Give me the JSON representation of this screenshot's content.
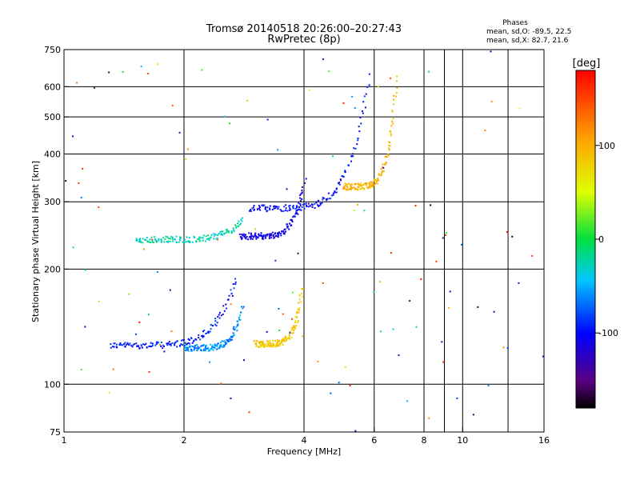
{
  "chart_data": {
    "type": "scatter",
    "title": "Tromsø 20140518 20:26:00–20:27:43",
    "subtitle": "RwPretec (8p)",
    "xlabel": "Frequency [MHz]",
    "ylabel": "Stationary phase Virtual Height [km]",
    "x_scale": "log",
    "y_scale": "log",
    "xlim": [
      1,
      16
    ],
    "ylim": [
      75,
      750
    ],
    "x_ticks": [
      "1",
      "2",
      "4",
      "6",
      "8",
      "10",
      "16"
    ],
    "x_tick_values": [
      1,
      2,
      4,
      6,
      8,
      10,
      16
    ],
    "x_minor_gridlines": [
      9,
      13
    ],
    "y_ticks": [
      "750",
      "600",
      "500",
      "400",
      "300",
      "200",
      "100",
      "75"
    ],
    "y_tick_values": [
      750,
      600,
      500,
      400,
      300,
      200,
      100,
      75
    ],
    "grid": true,
    "legend": {
      "title": "Phases",
      "lines": [
        "mean, sd,O: -89.5, 22.5",
        "mean, sd,X: 82.7, 21.6"
      ],
      "placement": "top-right"
    },
    "colorbar": {
      "label": "[deg]",
      "range": [
        -180,
        180
      ],
      "ticks": [
        "100",
        "0",
        "-100"
      ],
      "tick_values": [
        100,
        0,
        -100
      ],
      "colormap": "rainbow"
    },
    "traces": [
      {
        "id": "E-layer",
        "phase": -95,
        "x_range": [
          1.3,
          2.7
        ],
        "y": 127,
        "rising_end": [
          2.85,
          190
        ]
      },
      {
        "id": "Es-low",
        "phase": -60,
        "x_range": [
          2.0,
          2.8
        ],
        "y": 125,
        "rising_end": [
          2.8,
          160
        ]
      },
      {
        "id": "F1-o",
        "phase": -110,
        "x_range": [
          2.75,
          4.0
        ],
        "y": 245,
        "rising_end": [
          3.7,
          340
        ]
      },
      {
        "id": "F1-x",
        "phase": 85,
        "x_range": [
          3.0,
          3.95
        ],
        "y": 128,
        "rising_end": [
          3.95,
          180
        ]
      },
      {
        "id": "F2-o",
        "phase": -100,
        "x_range": [
          2.9,
          5.8
        ],
        "y": 290,
        "rising_end": [
          5.8,
          640
        ]
      },
      {
        "id": "F2-x",
        "phase": 95,
        "x_range": [
          5.0,
          6.8
        ],
        "y": 330,
        "rising_end": [
          6.8,
          640
        ]
      },
      {
        "id": "Es-upper",
        "phase": -25,
        "x_range": [
          1.5,
          2.8
        ],
        "y": 240,
        "rising_end": [
          2.8,
          270
        ]
      }
    ]
  }
}
